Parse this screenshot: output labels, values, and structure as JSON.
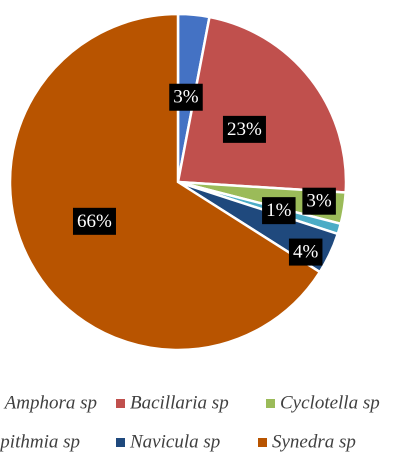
{
  "chart_data": {
    "type": "pie",
    "categories": [
      "Amphora sp",
      "Bacillaria sp",
      "Cyclotella sp",
      "Epithmia sp",
      "Navicula sp",
      "Synedra sp"
    ],
    "values": [
      3,
      23,
      3,
      1,
      4,
      66
    ],
    "value_labels": [
      "3%",
      "23%",
      "3%",
      "1%",
      "4%",
      "66%"
    ],
    "colors": [
      "#4472c4",
      "#c0504d",
      "#9bbb59",
      "#4bacc6",
      "#1f497d",
      "#b85400"
    ]
  }
}
